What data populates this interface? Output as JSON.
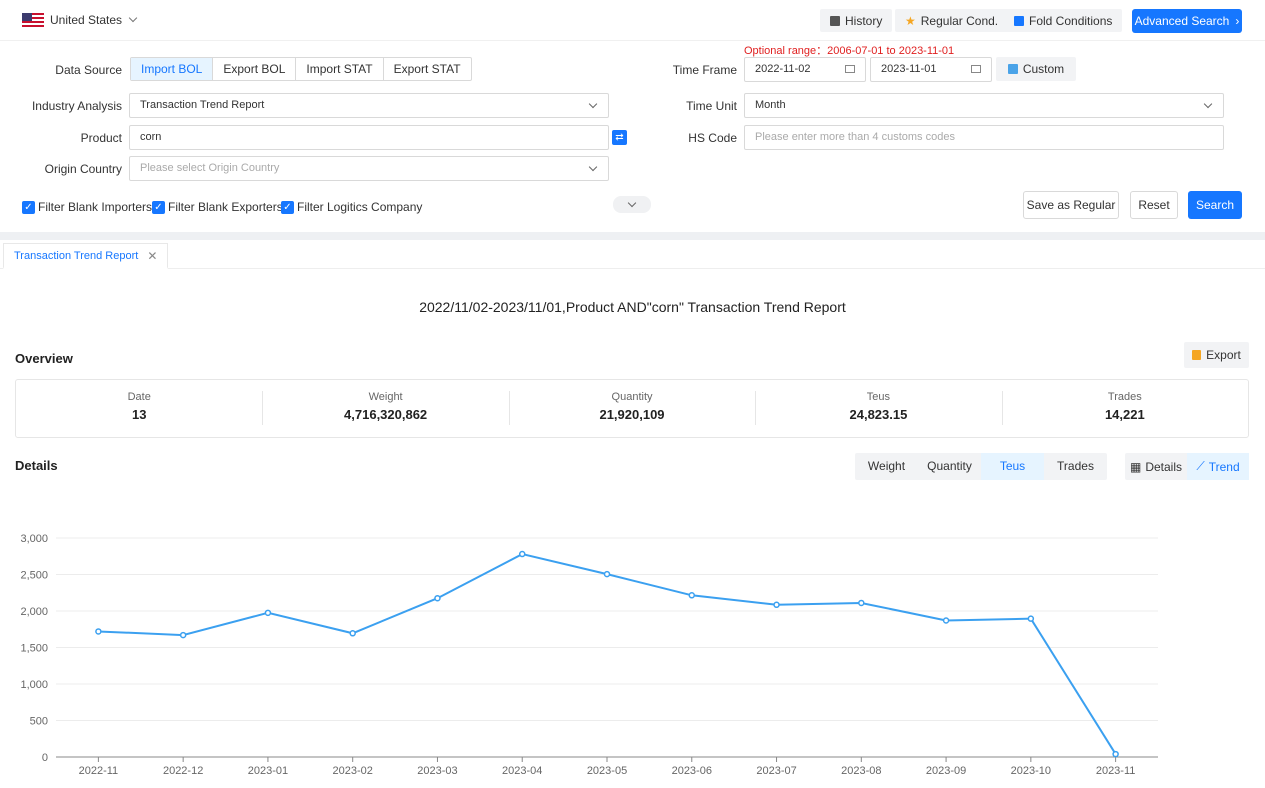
{
  "header": {
    "country": "United States",
    "history": "History",
    "regular_cond": "Regular Cond.",
    "fold_conditions": "Fold Conditions",
    "advanced_search": "Advanced Search"
  },
  "form": {
    "optional_range": "Optional range：2006-07-01 to 2023-11-01",
    "data_source_label": "Data Source",
    "data_sources": [
      "Import BOL",
      "Export BOL",
      "Import STAT",
      "Export STAT"
    ],
    "time_frame_label": "Time Frame",
    "date_start": "2022-11-02",
    "date_end": "2023-11-01",
    "custom": "Custom",
    "industry_label": "Industry Analysis",
    "industry_value": "Transaction Trend Report",
    "time_unit_label": "Time Unit",
    "time_unit_value": "Month",
    "product_label": "Product",
    "product_value": "corn",
    "hs_code_label": "HS Code",
    "hs_code_placeholder": "Please enter more than 4 customs codes",
    "origin_label": "Origin Country",
    "origin_placeholder": "Please select Origin Country",
    "filters": [
      "Filter Blank Importers",
      "Filter Blank Exporters",
      "Filter Logitics Company"
    ],
    "save_regular": "Save as Regular",
    "reset": "Reset",
    "search": "Search"
  },
  "report": {
    "tab": "Transaction Trend Report",
    "title": "2022/11/02-2023/11/01,Product AND\"corn\" Transaction Trend Report",
    "overview_label": "Overview",
    "export": "Export",
    "overview": [
      {
        "label": "Date",
        "value": "13"
      },
      {
        "label": "Weight",
        "value": "4,716,320,862"
      },
      {
        "label": "Quantity",
        "value": "21,920,109"
      },
      {
        "label": "Teus",
        "value": "24,823.15"
      },
      {
        "label": "Trades",
        "value": "14,221"
      }
    ],
    "details_label": "Details",
    "metrics": [
      "Weight",
      "Quantity",
      "Teus",
      "Trades"
    ],
    "active_metric": "Teus",
    "views": [
      "Details",
      "Trend"
    ],
    "active_view": "Trend"
  },
  "colors": {
    "primary": "#1677ff",
    "line": "#3ba0f0",
    "warning": "#e02020"
  },
  "chart_data": {
    "type": "line",
    "x": [
      "2022-11",
      "2022-12",
      "2023-01",
      "2023-02",
      "2023-03",
      "2023-04",
      "2023-05",
      "2023-06",
      "2023-07",
      "2023-08",
      "2023-09",
      "2023-10",
      "2023-11"
    ],
    "series": [
      {
        "values": [
          1720,
          1670,
          1975,
          1695,
          2175,
          2780,
          2505,
          2215,
          2085,
          2110,
          1870,
          1895,
          40
        ]
      }
    ],
    "ylim": [
      0,
      3000
    ],
    "yticks": [
      0,
      500,
      1000,
      1500,
      2000,
      2500,
      3000
    ],
    "grid": true
  }
}
